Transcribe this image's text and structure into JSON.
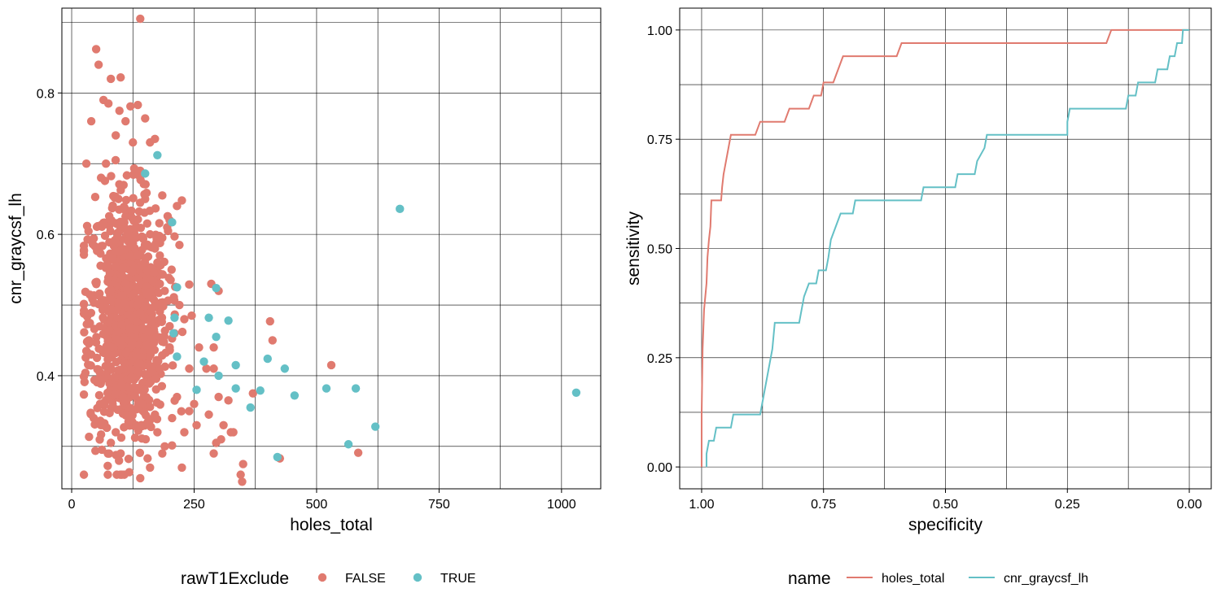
{
  "chart_data": [
    {
      "type": "scatter",
      "xlabel": "holes_total",
      "ylabel": "cnr_graycsf_lh",
      "xlim": [
        -20,
        1080
      ],
      "ylim": [
        0.24,
        0.92
      ],
      "x_ticks": [
        0,
        250,
        500,
        750,
        1000
      ],
      "x_tick_labels": [
        "0",
        "250",
        "500",
        "750",
        "1000"
      ],
      "y_ticks": [
        0.4,
        0.6,
        0.8
      ],
      "y_tick_labels": [
        "0.4",
        "0.6",
        "0.8"
      ],
      "x_minor_grid": [
        125,
        375,
        625,
        875
      ],
      "y_minor_grid": [
        0.3,
        0.5,
        0.7,
        0.9
      ],
      "grid": true,
      "legend": {
        "title": "rawT1Exclude",
        "position": "bottom",
        "entries": [
          "FALSE",
          "TRUE"
        ]
      },
      "series": [
        {
          "name": "FALSE",
          "color": "#E07A6F",
          "bulk_region": {
            "count": 900,
            "x_center": 115,
            "x_spread": 40,
            "y_center": 0.48,
            "y_spread": 0.09
          },
          "points": [
            [
              140,
              0.905
            ],
            [
              50,
              0.862
            ],
            [
              55,
              0.84
            ],
            [
              80,
              0.82
            ],
            [
              100,
              0.822
            ],
            [
              65,
              0.79
            ],
            [
              75,
              0.785
            ],
            [
              135,
              0.783
            ],
            [
              120,
              0.781
            ],
            [
              150,
              0.764
            ],
            [
              40,
              0.76
            ],
            [
              170,
              0.735
            ],
            [
              30,
              0.7
            ],
            [
              160,
              0.73
            ],
            [
              185,
              0.655
            ],
            [
              200,
              0.62
            ],
            [
              225,
              0.648
            ],
            [
              215,
              0.64
            ],
            [
              220,
              0.585
            ],
            [
              195,
              0.61
            ],
            [
              210,
              0.597
            ],
            [
              30,
              0.435
            ],
            [
              40,
              0.43
            ],
            [
              35,
              0.415
            ],
            [
              230,
              0.48
            ],
            [
              245,
              0.485
            ],
            [
              240,
              0.41
            ],
            [
              240,
              0.35
            ],
            [
              250,
              0.36
            ],
            [
              255,
              0.33
            ],
            [
              260,
              0.44
            ],
            [
              275,
              0.41
            ],
            [
              290,
              0.41
            ],
            [
              280,
              0.345
            ],
            [
              285,
              0.53
            ],
            [
              300,
              0.52
            ],
            [
              290,
              0.44
            ],
            [
              300,
              0.37
            ],
            [
              295,
              0.305
            ],
            [
              290,
              0.29
            ],
            [
              305,
              0.31
            ],
            [
              310,
              0.33
            ],
            [
              320,
              0.365
            ],
            [
              325,
              0.32
            ],
            [
              330,
              0.32
            ],
            [
              345,
              0.26
            ],
            [
              348,
              0.25
            ],
            [
              350,
              0.275
            ],
            [
              370,
              0.375
            ],
            [
              405,
              0.477
            ],
            [
              410,
              0.45
            ],
            [
              425,
              0.283
            ],
            [
              530,
              0.415
            ],
            [
              585,
              0.291
            ],
            [
              140,
              0.255
            ],
            [
              225,
              0.27
            ],
            [
              190,
              0.3
            ],
            [
              160,
              0.27
            ],
            [
              230,
              0.32
            ],
            [
              205,
              0.34
            ],
            [
              215,
              0.37
            ],
            [
              180,
              0.41
            ],
            [
              170,
              0.345
            ],
            [
              200,
              0.44
            ],
            [
              185,
              0.29
            ],
            [
              155,
              0.283
            ],
            [
              175,
              0.32
            ],
            [
              210,
              0.46
            ],
            [
              220,
              0.5
            ],
            [
              200,
              0.47
            ],
            [
              190,
              0.52
            ],
            [
              180,
              0.53
            ],
            [
              100,
              0.29
            ],
            [
              80,
              0.305
            ],
            [
              90,
              0.32
            ],
            [
              60,
              0.33
            ],
            [
              45,
              0.34
            ],
            [
              35,
              0.45
            ],
            [
              70,
              0.7
            ],
            [
              90,
              0.74
            ],
            [
              60,
              0.68
            ],
            [
              110,
              0.76
            ],
            [
              125,
              0.73
            ],
            [
              140,
              0.69
            ],
            [
              150,
              0.65
            ],
            [
              160,
              0.6
            ],
            [
              170,
              0.58
            ],
            [
              175,
              0.56
            ],
            [
              180,
              0.57
            ],
            [
              185,
              0.595
            ]
          ]
        },
        {
          "name": "TRUE",
          "color": "#64C0C6",
          "points": [
            [
              175,
              0.712
            ],
            [
              150,
              0.686
            ],
            [
              205,
              0.617
            ],
            [
              215,
              0.525
            ],
            [
              295,
              0.524
            ],
            [
              210,
              0.482
            ],
            [
              280,
              0.482
            ],
            [
              320,
              0.478
            ],
            [
              295,
              0.455
            ],
            [
              208,
              0.46
            ],
            [
              215,
              0.427
            ],
            [
              270,
              0.42
            ],
            [
              335,
              0.415
            ],
            [
              400,
              0.424
            ],
            [
              435,
              0.41
            ],
            [
              300,
              0.4
            ],
            [
              255,
              0.38
            ],
            [
              335,
              0.382
            ],
            [
              385,
              0.379
            ],
            [
              455,
              0.372
            ],
            [
              520,
              0.382
            ],
            [
              580,
              0.382
            ],
            [
              365,
              0.355
            ],
            [
              620,
              0.328
            ],
            [
              565,
              0.303
            ],
            [
              420,
              0.285
            ],
            [
              670,
              0.636
            ],
            [
              1030,
              0.376
            ]
          ]
        }
      ]
    },
    {
      "type": "line",
      "xlabel": "specificity",
      "ylabel": "sensitivity",
      "x_reversed": true,
      "xlim": [
        1.045,
        -0.045
      ],
      "ylim": [
        -0.05,
        1.05
      ],
      "x_ticks": [
        1.0,
        0.75,
        0.5,
        0.25,
        0.0
      ],
      "x_tick_labels": [
        "1.00",
        "0.75",
        "0.50",
        "0.25",
        "0.00"
      ],
      "y_ticks": [
        0.0,
        0.25,
        0.5,
        0.75,
        1.0
      ],
      "y_tick_labels": [
        "0.00",
        "0.25",
        "0.50",
        "0.75",
        "1.00"
      ],
      "x_minor_grid": [
        0.875,
        0.625,
        0.375,
        0.125
      ],
      "y_minor_grid": [
        0.125,
        0.375,
        0.625,
        0.875
      ],
      "grid": true,
      "legend": {
        "title": "name",
        "position": "bottom",
        "entries": [
          "holes_total",
          "cnr_graycsf_lh"
        ]
      },
      "series": [
        {
          "name": "holes_total",
          "color": "#E07A6F",
          "points": [
            [
              1.0,
              0.0
            ],
            [
              1.0,
              0.12
            ],
            [
              0.998,
              0.27
            ],
            [
              0.995,
              0.36
            ],
            [
              0.99,
              0.42
            ],
            [
              0.988,
              0.48
            ],
            [
              0.985,
              0.52
            ],
            [
              0.982,
              0.55
            ],
            [
              0.98,
              0.61
            ],
            [
              0.96,
              0.61
            ],
            [
              0.958,
              0.64
            ],
            [
              0.955,
              0.67
            ],
            [
              0.95,
              0.7
            ],
            [
              0.945,
              0.73
            ],
            [
              0.94,
              0.76
            ],
            [
              0.89,
              0.76
            ],
            [
              0.88,
              0.79
            ],
            [
              0.83,
              0.79
            ],
            [
              0.82,
              0.82
            ],
            [
              0.78,
              0.82
            ],
            [
              0.77,
              0.85
            ],
            [
              0.755,
              0.85
            ],
            [
              0.75,
              0.88
            ],
            [
              0.73,
              0.88
            ],
            [
              0.72,
              0.91
            ],
            [
              0.71,
              0.94
            ],
            [
              0.6,
              0.94
            ],
            [
              0.59,
              0.97
            ],
            [
              0.17,
              0.97
            ],
            [
              0.16,
              1.0
            ],
            [
              0.0,
              1.0
            ]
          ]
        },
        {
          "name": "cnr_graycsf_lh",
          "color": "#64C0C6",
          "points": [
            [
              0.99,
              0.0
            ],
            [
              0.99,
              0.03
            ],
            [
              0.985,
              0.06
            ],
            [
              0.975,
              0.06
            ],
            [
              0.97,
              0.09
            ],
            [
              0.94,
              0.09
            ],
            [
              0.935,
              0.12
            ],
            [
              0.88,
              0.12
            ],
            [
              0.875,
              0.15
            ],
            [
              0.87,
              0.18
            ],
            [
              0.865,
              0.21
            ],
            [
              0.86,
              0.24
            ],
            [
              0.855,
              0.27
            ],
            [
              0.85,
              0.33
            ],
            [
              0.8,
              0.33
            ],
            [
              0.795,
              0.36
            ],
            [
              0.79,
              0.39
            ],
            [
              0.78,
              0.42
            ],
            [
              0.765,
              0.42
            ],
            [
              0.76,
              0.45
            ],
            [
              0.745,
              0.45
            ],
            [
              0.74,
              0.48
            ],
            [
              0.735,
              0.52
            ],
            [
              0.725,
              0.55
            ],
            [
              0.715,
              0.58
            ],
            [
              0.69,
              0.58
            ],
            [
              0.685,
              0.61
            ],
            [
              0.55,
              0.61
            ],
            [
              0.545,
              0.64
            ],
            [
              0.48,
              0.64
            ],
            [
              0.475,
              0.67
            ],
            [
              0.44,
              0.67
            ],
            [
              0.435,
              0.7
            ],
            [
              0.42,
              0.73
            ],
            [
              0.415,
              0.76
            ],
            [
              0.25,
              0.76
            ],
            [
              0.25,
              0.79
            ],
            [
              0.245,
              0.82
            ],
            [
              0.13,
              0.82
            ],
            [
              0.125,
              0.85
            ],
            [
              0.11,
              0.85
            ],
            [
              0.105,
              0.88
            ],
            [
              0.07,
              0.88
            ],
            [
              0.065,
              0.91
            ],
            [
              0.045,
              0.91
            ],
            [
              0.04,
              0.94
            ],
            [
              0.03,
              0.94
            ],
            [
              0.025,
              0.97
            ],
            [
              0.015,
              0.97
            ],
            [
              0.013,
              1.0
            ],
            [
              0.0,
              1.0
            ]
          ]
        }
      ]
    }
  ]
}
